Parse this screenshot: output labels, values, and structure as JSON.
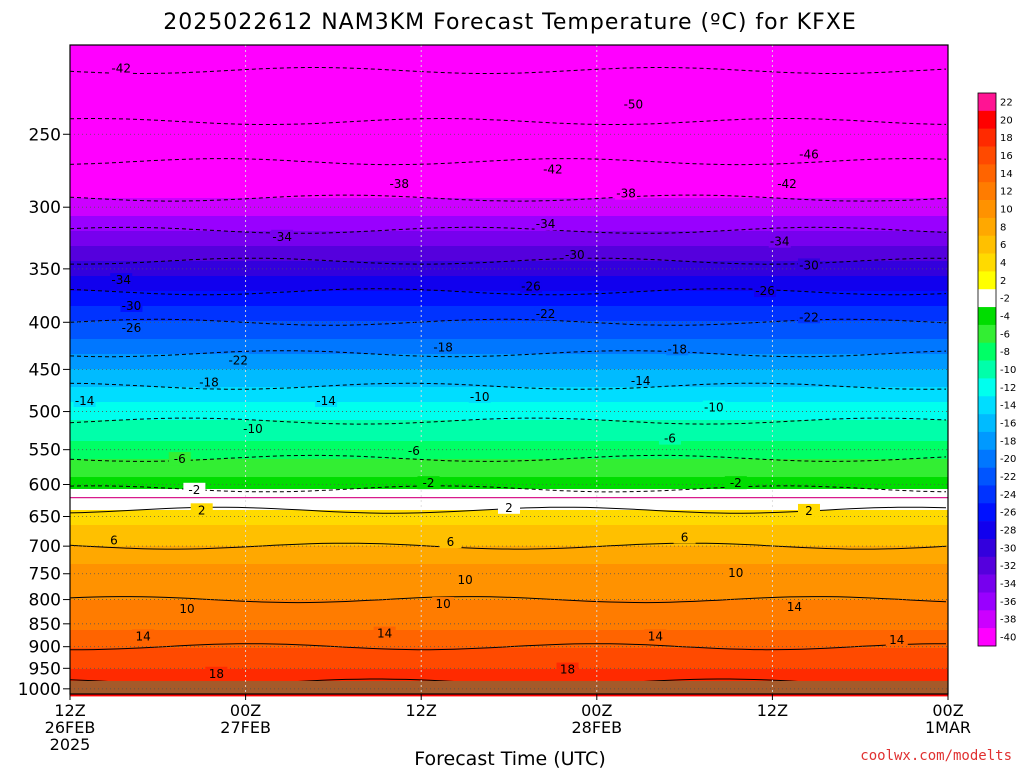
{
  "chart_data": {
    "type": "heatmap",
    "title": "2025022612 NAM3KM Forecast Temperature (ºC) for KFXE",
    "xlabel": "Forecast Time (UTC)",
    "ylabel": "",
    "x_ticks": [
      {
        "hour": 0,
        "line1": "12Z",
        "line2": "26FEB",
        "line3": "2025"
      },
      {
        "hour": 12,
        "line1": "00Z",
        "line2": "27FEB",
        "line3": ""
      },
      {
        "hour": 24,
        "line1": "12Z",
        "line2": "",
        "line3": ""
      },
      {
        "hour": 36,
        "line1": "00Z",
        "line2": "28FEB",
        "line3": ""
      },
      {
        "hour": 48,
        "line1": "12Z",
        "line2": "",
        "line3": ""
      },
      {
        "hour": 60,
        "line1": "00Z",
        "line2": "1MAR",
        "line3": ""
      }
    ],
    "xlim": [
      0,
      60
    ],
    "ylim_hpa": [
      1013,
      200
    ],
    "y_scale": "log-pressure",
    "y_ticks": [
      "250",
      "300",
      "350",
      "400",
      "450",
      "500",
      "550",
      "600",
      "650",
      "700",
      "750",
      "800",
      "850",
      "900",
      "950",
      "1000"
    ],
    "grid": true,
    "surface_color": "#a55a2a",
    "colorbar": {
      "placement": "right",
      "labels": [
        "22",
        "20",
        "18",
        "16",
        "14",
        "12",
        "10",
        "8",
        "6",
        "4",
        "2",
        "-2",
        "-4",
        "-6",
        "-8",
        "-10",
        "-12",
        "-14",
        "-16",
        "-18",
        "-20",
        "-22",
        "-24",
        "-26",
        "-28",
        "-30",
        "-32",
        "-34",
        "-36",
        "-38",
        "-40"
      ],
      "colors": [
        "#ff1493",
        "#ff0000",
        "#ff2a00",
        "#ff4a00",
        "#ff6400",
        "#ff7c00",
        "#ff9200",
        "#ffa800",
        "#ffc000",
        "#ffda00",
        "#ffff00",
        "#ffffff",
        "#00dd00",
        "#33ee33",
        "#00ff66",
        "#00ffaa",
        "#00ffee",
        "#00ddff",
        "#00bbff",
        "#0099ff",
        "#0077ff",
        "#0055ff",
        "#0033ff",
        "#0011ff",
        "#1100ee",
        "#3300dd",
        "#5500dd",
        "#7700ee",
        "#9900ff",
        "#cc00ff",
        "#ff00ff"
      ]
    },
    "temperature_profile": [
      {
        "hpa": 1000,
        "t": 19
      },
      {
        "hpa": 950,
        "t": 16
      },
      {
        "hpa": 900,
        "t": 14
      },
      {
        "hpa": 850,
        "t": 11
      },
      {
        "hpa": 800,
        "t": 10
      },
      {
        "hpa": 750,
        "t": 9
      },
      {
        "hpa": 700,
        "t": 6
      },
      {
        "hpa": 650,
        "t": 3
      },
      {
        "hpa": 620,
        "t": 0
      },
      {
        "hpa": 600,
        "t": -3
      },
      {
        "hpa": 550,
        "t": -7
      },
      {
        "hpa": 500,
        "t": -11
      },
      {
        "hpa": 450,
        "t": -16
      },
      {
        "hpa": 400,
        "t": -22
      },
      {
        "hpa": 350,
        "t": -29
      },
      {
        "hpa": 300,
        "t": -37
      },
      {
        "hpa": 250,
        "t": -45
      },
      {
        "hpa": 200,
        "t": -52
      }
    ],
    "contour_labels": [
      {
        "hour": 3.5,
        "hpa": 212,
        "text": "-42"
      },
      {
        "hour": 38.5,
        "hpa": 232,
        "text": "-50"
      },
      {
        "hour": 50.5,
        "hpa": 263,
        "text": "-46"
      },
      {
        "hour": 33,
        "hpa": 273,
        "text": "-42"
      },
      {
        "hour": 49,
        "hpa": 283,
        "text": "-42"
      },
      {
        "hour": 22.5,
        "hpa": 283,
        "text": "-38"
      },
      {
        "hour": 38,
        "hpa": 290,
        "text": "-38"
      },
      {
        "hour": 14.5,
        "hpa": 323,
        "text": "-34"
      },
      {
        "hour": 32.5,
        "hpa": 313,
        "text": "-34"
      },
      {
        "hour": 48.5,
        "hpa": 327,
        "text": "-34"
      },
      {
        "hour": 34.5,
        "hpa": 338,
        "text": "-30"
      },
      {
        "hour": 50.5,
        "hpa": 347,
        "text": "-30"
      },
      {
        "hour": 3.5,
        "hpa": 360,
        "text": "-34"
      },
      {
        "hour": 31.5,
        "hpa": 366,
        "text": "-26"
      },
      {
        "hour": 47.5,
        "hpa": 370,
        "text": "-26"
      },
      {
        "hour": 4.2,
        "hpa": 384,
        "text": "-30"
      },
      {
        "hour": 32.5,
        "hpa": 392,
        "text": "-22"
      },
      {
        "hour": 50.5,
        "hpa": 395,
        "text": "-22"
      },
      {
        "hour": 4.2,
        "hpa": 406,
        "text": "-26"
      },
      {
        "hour": 25.5,
        "hpa": 426,
        "text": "-18"
      },
      {
        "hour": 41.5,
        "hpa": 428,
        "text": "-18"
      },
      {
        "hour": 11.5,
        "hpa": 440,
        "text": "-22"
      },
      {
        "hour": 9.5,
        "hpa": 465,
        "text": "-18"
      },
      {
        "hour": 39,
        "hpa": 463,
        "text": "-14"
      },
      {
        "hour": 28,
        "hpa": 482,
        "text": "-10"
      },
      {
        "hour": 1,
        "hpa": 487,
        "text": "-14"
      },
      {
        "hour": 17.5,
        "hpa": 487,
        "text": "-14"
      },
      {
        "hour": 44,
        "hpa": 495,
        "text": "-10"
      },
      {
        "hour": 12.5,
        "hpa": 522,
        "text": "-10"
      },
      {
        "hour": 41,
        "hpa": 535,
        "text": "-6"
      },
      {
        "hour": 23.5,
        "hpa": 552,
        "text": "-6"
      },
      {
        "hour": 7.5,
        "hpa": 563,
        "text": "-6"
      },
      {
        "hour": 24.5,
        "hpa": 598,
        "text": "-2"
      },
      {
        "hour": 45.5,
        "hpa": 598,
        "text": "-2"
      },
      {
        "hour": 8.5,
        "hpa": 608,
        "text": "-2"
      },
      {
        "hour": 30,
        "hpa": 636,
        "text": "2"
      },
      {
        "hour": 9,
        "hpa": 640,
        "text": "2"
      },
      {
        "hour": 50.5,
        "hpa": 641,
        "text": "2"
      },
      {
        "hour": 42,
        "hpa": 685,
        "text": "6"
      },
      {
        "hour": 26,
        "hpa": 693,
        "text": "6"
      },
      {
        "hour": 3,
        "hpa": 690,
        "text": "6"
      },
      {
        "hour": 45.5,
        "hpa": 749,
        "text": "10"
      },
      {
        "hour": 27,
        "hpa": 762,
        "text": "10"
      },
      {
        "hour": 25.5,
        "hpa": 809,
        "text": "10"
      },
      {
        "hour": 8,
        "hpa": 819,
        "text": "10"
      },
      {
        "hour": 49.5,
        "hpa": 815,
        "text": "14"
      },
      {
        "hour": 21.5,
        "hpa": 871,
        "text": "14"
      },
      {
        "hour": 40,
        "hpa": 877,
        "text": "14"
      },
      {
        "hour": 5,
        "hpa": 877,
        "text": "14"
      },
      {
        "hour": 56.5,
        "hpa": 885,
        "text": "14"
      },
      {
        "hour": 34,
        "hpa": 953,
        "text": "18"
      },
      {
        "hour": 10,
        "hpa": 963,
        "text": "18"
      }
    ]
  },
  "credit": "coolwx.com/modelts"
}
